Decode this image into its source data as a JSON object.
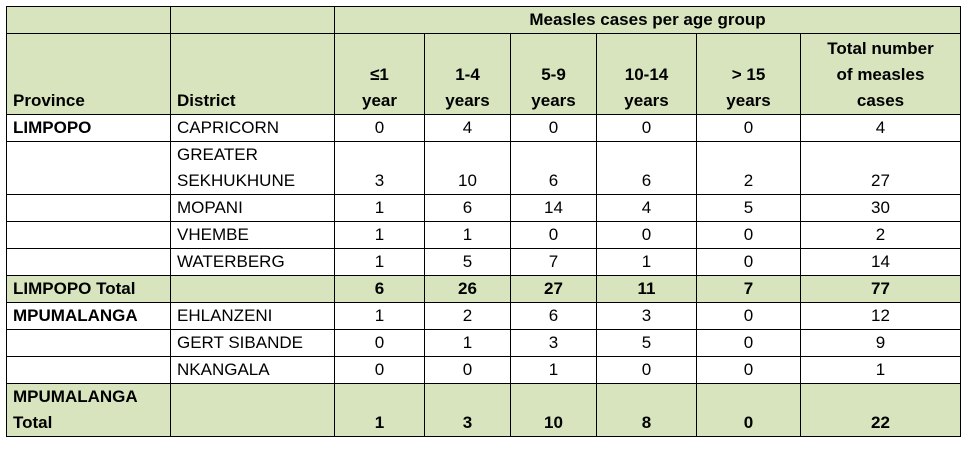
{
  "table": {
    "group_header": "Measles cases per age group",
    "columns": {
      "province": "Province",
      "district": "District",
      "age_le1_line1": "≤1",
      "age_le1_line2": "year",
      "age_1_4_line1": "1-4",
      "age_1_4_line2": "years",
      "age_5_9_line1": "5-9",
      "age_5_9_line2": "years",
      "age_10_14_line1": "10-14",
      "age_10_14_line2": "years",
      "age_gt15_line1": "> 15",
      "age_gt15_line2": "years",
      "total_line1": "Total number",
      "total_line2": "of measles",
      "total_line3": "cases"
    },
    "rows": [
      {
        "province": "LIMPOPO",
        "district": "CAPRICORN",
        "v": [
          "0",
          "4",
          "0",
          "0",
          "0",
          "4"
        ]
      },
      {
        "province": "",
        "district_line1": "GREATER",
        "district_line2": "SEKHUKHUNE",
        "v": [
          "3",
          "10",
          "6",
          "6",
          "2",
          "27"
        ]
      },
      {
        "province": "",
        "district": "MOPANI",
        "v": [
          "1",
          "6",
          "14",
          "4",
          "5",
          "30"
        ]
      },
      {
        "province": "",
        "district": "VHEMBE",
        "v": [
          "1",
          "1",
          "0",
          "0",
          "0",
          "2"
        ]
      },
      {
        "province": "",
        "district": "WATERBERG",
        "v": [
          "1",
          "5",
          "7",
          "1",
          "0",
          "14"
        ]
      },
      {
        "province": "LIMPOPO Total",
        "district": "",
        "v": [
          "6",
          "26",
          "27",
          "11",
          "7",
          "77"
        ]
      },
      {
        "province": "MPUMALANGA",
        "district": "EHLANZENI",
        "v": [
          "1",
          "2",
          "6",
          "3",
          "0",
          "12"
        ]
      },
      {
        "province": "",
        "district": "GERT SIBANDE",
        "v": [
          "0",
          "1",
          "3",
          "5",
          "0",
          "9"
        ]
      },
      {
        "province": "",
        "district": "NKANGALA",
        "v": [
          "0",
          "0",
          "1",
          "0",
          "0",
          "1"
        ]
      },
      {
        "province_line1": "MPUMALANGA",
        "province_line2": "Total",
        "district": "",
        "v": [
          "1",
          "3",
          "10",
          "8",
          "0",
          "22"
        ]
      }
    ]
  },
  "colors": {
    "header_fill": "#d7e4bd",
    "total_fill": "#d7e4bd",
    "border": "#000000"
  }
}
